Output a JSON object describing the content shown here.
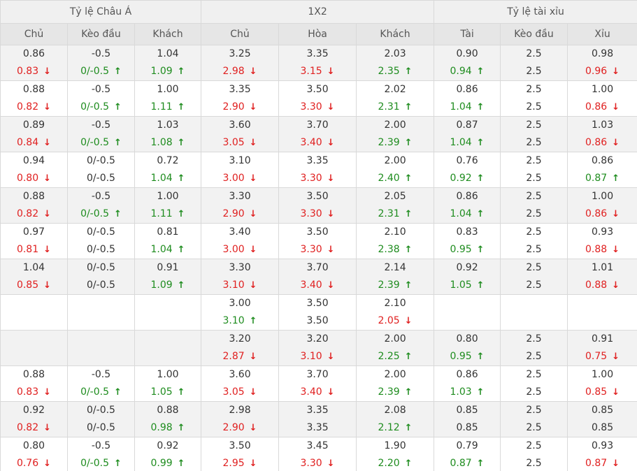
{
  "colors": {
    "up": "#1e8c1e",
    "down": "#e02020",
    "header_bg": "#e6e6e6",
    "row_shade": "#f2f2f2",
    "border": "#d9d9d9"
  },
  "arrows": {
    "up": "↑",
    "down": "↓"
  },
  "groups": [
    "Tỷ lệ Châu Á",
    "1X2",
    "Tỷ lệ tài xỉu"
  ],
  "columns": [
    "Chủ",
    "Kèo đầu",
    "Khách",
    "Chủ",
    "Hòa",
    "Khách",
    "Tài",
    "Kèo đầu",
    "Xỉu"
  ],
  "rows": [
    {
      "shaded": true,
      "cells": [
        {
          "open": "0.86",
          "live": "0.83",
          "dir": "down"
        },
        {
          "open": "-0.5",
          "live": "0/-0.5",
          "dir": "up"
        },
        {
          "open": "1.04",
          "live": "1.09",
          "dir": "up"
        },
        {
          "open": "3.25",
          "live": "2.98",
          "dir": "down"
        },
        {
          "open": "3.35",
          "live": "3.15",
          "dir": "down"
        },
        {
          "open": "2.03",
          "live": "2.35",
          "dir": "up"
        },
        {
          "open": "0.90",
          "live": "0.94",
          "dir": "up"
        },
        {
          "open": "2.5",
          "live": "2.5",
          "dir": "none"
        },
        {
          "open": "0.98",
          "live": "0.96",
          "dir": "down"
        }
      ]
    },
    {
      "shaded": false,
      "cells": [
        {
          "open": "0.88",
          "live": "0.82",
          "dir": "down"
        },
        {
          "open": "-0.5",
          "live": "0/-0.5",
          "dir": "up"
        },
        {
          "open": "1.00",
          "live": "1.11",
          "dir": "up"
        },
        {
          "open": "3.35",
          "live": "2.90",
          "dir": "down"
        },
        {
          "open": "3.50",
          "live": "3.30",
          "dir": "down"
        },
        {
          "open": "2.02",
          "live": "2.31",
          "dir": "up"
        },
        {
          "open": "0.86",
          "live": "1.04",
          "dir": "up"
        },
        {
          "open": "2.5",
          "live": "2.5",
          "dir": "none"
        },
        {
          "open": "1.00",
          "live": "0.86",
          "dir": "down"
        }
      ]
    },
    {
      "shaded": true,
      "cells": [
        {
          "open": "0.89",
          "live": "0.84",
          "dir": "down"
        },
        {
          "open": "-0.5",
          "live": "0/-0.5",
          "dir": "up"
        },
        {
          "open": "1.03",
          "live": "1.08",
          "dir": "up"
        },
        {
          "open": "3.60",
          "live": "3.05",
          "dir": "down"
        },
        {
          "open": "3.70",
          "live": "3.40",
          "dir": "down"
        },
        {
          "open": "2.00",
          "live": "2.39",
          "dir": "up"
        },
        {
          "open": "0.87",
          "live": "1.04",
          "dir": "up"
        },
        {
          "open": "2.5",
          "live": "2.5",
          "dir": "none"
        },
        {
          "open": "1.03",
          "live": "0.86",
          "dir": "down"
        }
      ]
    },
    {
      "shaded": false,
      "cells": [
        {
          "open": "0.94",
          "live": "0.80",
          "dir": "down"
        },
        {
          "open": "0/-0.5",
          "live": "0/-0.5",
          "dir": "none"
        },
        {
          "open": "0.72",
          "live": "1.04",
          "dir": "up"
        },
        {
          "open": "3.10",
          "live": "3.00",
          "dir": "down"
        },
        {
          "open": "3.35",
          "live": "3.30",
          "dir": "down"
        },
        {
          "open": "2.00",
          "live": "2.40",
          "dir": "up"
        },
        {
          "open": "0.76",
          "live": "0.92",
          "dir": "up"
        },
        {
          "open": "2.5",
          "live": "2.5",
          "dir": "none"
        },
        {
          "open": "0.86",
          "live": "0.87",
          "dir": "up"
        }
      ]
    },
    {
      "shaded": true,
      "cells": [
        {
          "open": "0.88",
          "live": "0.82",
          "dir": "down"
        },
        {
          "open": "-0.5",
          "live": "0/-0.5",
          "dir": "up"
        },
        {
          "open": "1.00",
          "live": "1.11",
          "dir": "up"
        },
        {
          "open": "3.30",
          "live": "2.90",
          "dir": "down"
        },
        {
          "open": "3.50",
          "live": "3.30",
          "dir": "down"
        },
        {
          "open": "2.05",
          "live": "2.31",
          "dir": "up"
        },
        {
          "open": "0.86",
          "live": "1.04",
          "dir": "up"
        },
        {
          "open": "2.5",
          "live": "2.5",
          "dir": "none"
        },
        {
          "open": "1.00",
          "live": "0.86",
          "dir": "down"
        }
      ]
    },
    {
      "shaded": false,
      "cells": [
        {
          "open": "0.97",
          "live": "0.81",
          "dir": "down"
        },
        {
          "open": "0/-0.5",
          "live": "0/-0.5",
          "dir": "none"
        },
        {
          "open": "0.81",
          "live": "1.04",
          "dir": "up"
        },
        {
          "open": "3.40",
          "live": "3.00",
          "dir": "down"
        },
        {
          "open": "3.50",
          "live": "3.30",
          "dir": "down"
        },
        {
          "open": "2.10",
          "live": "2.38",
          "dir": "up"
        },
        {
          "open": "0.83",
          "live": "0.95",
          "dir": "up"
        },
        {
          "open": "2.5",
          "live": "2.5",
          "dir": "none"
        },
        {
          "open": "0.93",
          "live": "0.88",
          "dir": "down"
        }
      ]
    },
    {
      "shaded": true,
      "cells": [
        {
          "open": "1.04",
          "live": "0.85",
          "dir": "down"
        },
        {
          "open": "0/-0.5",
          "live": "0/-0.5",
          "dir": "none"
        },
        {
          "open": "0.91",
          "live": "1.09",
          "dir": "up"
        },
        {
          "open": "3.30",
          "live": "3.10",
          "dir": "down"
        },
        {
          "open": "3.70",
          "live": "3.40",
          "dir": "down"
        },
        {
          "open": "2.14",
          "live": "2.39",
          "dir": "up"
        },
        {
          "open": "0.92",
          "live": "1.05",
          "dir": "up"
        },
        {
          "open": "2.5",
          "live": "2.5",
          "dir": "none"
        },
        {
          "open": "1.01",
          "live": "0.88",
          "dir": "down"
        }
      ]
    },
    {
      "shaded": false,
      "cells": [
        null,
        null,
        null,
        {
          "open": "3.00",
          "live": "3.10",
          "dir": "up"
        },
        {
          "open": "3.50",
          "live": "3.50",
          "dir": "none"
        },
        {
          "open": "2.10",
          "live": "2.05",
          "dir": "down"
        },
        null,
        null,
        null
      ]
    },
    {
      "shaded": true,
      "cells": [
        null,
        null,
        null,
        {
          "open": "3.20",
          "live": "2.87",
          "dir": "down"
        },
        {
          "open": "3.20",
          "live": "3.10",
          "dir": "down"
        },
        {
          "open": "2.00",
          "live": "2.25",
          "dir": "up"
        },
        {
          "open": "0.80",
          "live": "0.95",
          "dir": "up"
        },
        {
          "open": "2.5",
          "live": "2.5",
          "dir": "none"
        },
        {
          "open": "0.91",
          "live": "0.75",
          "dir": "down"
        }
      ]
    },
    {
      "shaded": false,
      "cells": [
        {
          "open": "0.88",
          "live": "0.83",
          "dir": "down"
        },
        {
          "open": "-0.5",
          "live": "0/-0.5",
          "dir": "up"
        },
        {
          "open": "1.00",
          "live": "1.05",
          "dir": "up"
        },
        {
          "open": "3.60",
          "live": "3.05",
          "dir": "down"
        },
        {
          "open": "3.70",
          "live": "3.40",
          "dir": "down"
        },
        {
          "open": "2.00",
          "live": "2.39",
          "dir": "up"
        },
        {
          "open": "0.86",
          "live": "1.03",
          "dir": "up"
        },
        {
          "open": "2.5",
          "live": "2.5",
          "dir": "none"
        },
        {
          "open": "1.00",
          "live": "0.85",
          "dir": "down"
        }
      ]
    },
    {
      "shaded": true,
      "cells": [
        {
          "open": "0.92",
          "live": "0.82",
          "dir": "down"
        },
        {
          "open": "0/-0.5",
          "live": "0/-0.5",
          "dir": "none"
        },
        {
          "open": "0.88",
          "live": "0.98",
          "dir": "up"
        },
        {
          "open": "2.98",
          "live": "2.90",
          "dir": "down"
        },
        {
          "open": "3.35",
          "live": "3.35",
          "dir": "none"
        },
        {
          "open": "2.08",
          "live": "2.12",
          "dir": "up"
        },
        {
          "open": "0.85",
          "live": "0.85",
          "dir": "none"
        },
        {
          "open": "2.5",
          "live": "2.5",
          "dir": "none"
        },
        {
          "open": "0.85",
          "live": "0.85",
          "dir": "none"
        }
      ]
    },
    {
      "shaded": false,
      "cells": [
        {
          "open": "0.80",
          "live": "0.76",
          "dir": "down"
        },
        {
          "open": "-0.5",
          "live": "0/-0.5",
          "dir": "up"
        },
        {
          "open": "0.92",
          "live": "0.99",
          "dir": "up"
        },
        {
          "open": "3.50",
          "live": "2.95",
          "dir": "down"
        },
        {
          "open": "3.45",
          "live": "3.30",
          "dir": "down"
        },
        {
          "open": "1.90",
          "live": "2.20",
          "dir": "up"
        },
        {
          "open": "0.79",
          "live": "0.87",
          "dir": "up"
        },
        {
          "open": "2.5",
          "live": "2.5",
          "dir": "none"
        },
        {
          "open": "0.93",
          "live": "0.87",
          "dir": "down"
        }
      ]
    }
  ]
}
